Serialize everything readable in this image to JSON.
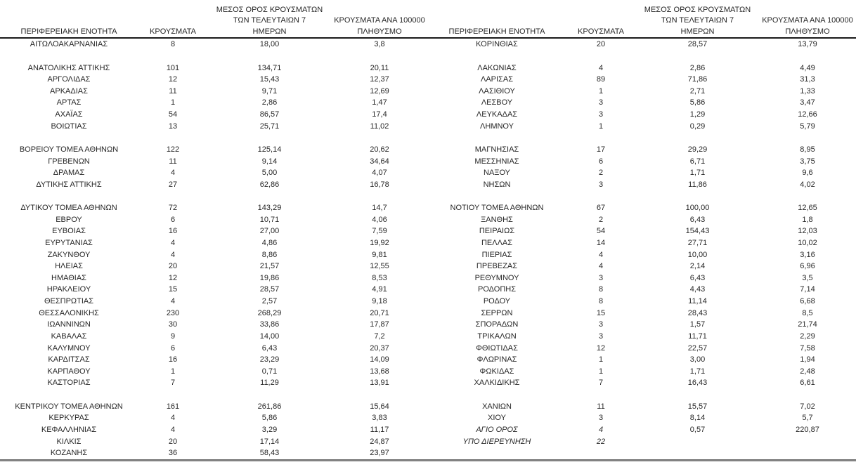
{
  "colors": {
    "text": "#262626",
    "header_rule": "#1a1a1a",
    "bottom_rule": "#828282",
    "background": "#ffffff"
  },
  "columns": {
    "region": "ΠΕΡΙΦΕΡΕΙΑΚΗ ΕΝΟΤΗΤΑ",
    "cases": "ΚΡΟΥΣΜΑΤΑ",
    "avg7_lines": [
      "ΜΕΣΟΣ ΟΡΟΣ ΚΡΟΥΣΜΑΤΩΝ",
      "ΤΩΝ ΤΕΛΕΥΤΑΙΩΝ 7",
      "ΗΜΕΡΩΝ"
    ],
    "per100k_lines": [
      "ΚΡΟΥΣΜΑΤΑ ΑΝΑ 100000",
      "ΠΛΗΘΥΣΜΟ"
    ]
  },
  "tables": [
    {
      "id": "left",
      "rows": [
        {
          "region": "ΑΙΤΩΛΟΑΚΑΡΝΑΝΙΑΣ",
          "cases": "8",
          "avg7": "18,00",
          "per100k": "3,8"
        },
        null,
        {
          "region": "ΑΝΑΤΟΛΙΚΗΣ ΑΤΤΙΚΗΣ",
          "cases": "101",
          "avg7": "134,71",
          "per100k": "20,11"
        },
        {
          "region": "ΑΡΓΟΛΙΔΑΣ",
          "cases": "12",
          "avg7": "15,43",
          "per100k": "12,37"
        },
        {
          "region": "ΑΡΚΑΔΙΑΣ",
          "cases": "11",
          "avg7": "9,71",
          "per100k": "12,69"
        },
        {
          "region": "ΑΡΤΑΣ",
          "cases": "1",
          "avg7": "2,86",
          "per100k": "1,47"
        },
        {
          "region": "ΑΧΑΪΑΣ",
          "cases": "54",
          "avg7": "86,57",
          "per100k": "17,4"
        },
        {
          "region": "ΒΟΙΩΤΙΑΣ",
          "cases": "13",
          "avg7": "25,71",
          "per100k": "11,02"
        },
        null,
        {
          "region": "ΒΟΡΕΙΟΥ ΤΟΜΕΑ ΑΘΗΝΩΝ",
          "cases": "122",
          "avg7": "125,14",
          "per100k": "20,62"
        },
        {
          "region": "ΓΡΕΒΕΝΩΝ",
          "cases": "11",
          "avg7": "9,14",
          "per100k": "34,64"
        },
        {
          "region": "ΔΡΑΜΑΣ",
          "cases": "4",
          "avg7": "5,00",
          "per100k": "4,07"
        },
        {
          "region": "ΔΥΤΙΚΗΣ ΑΤΤΙΚΗΣ",
          "cases": "27",
          "avg7": "62,86",
          "per100k": "16,78"
        },
        null,
        {
          "region": "ΔΥΤΙΚΟΥ ΤΟΜΕΑ ΑΘΗΝΩΝ",
          "cases": "72",
          "avg7": "143,29",
          "per100k": "14,7"
        },
        {
          "region": "ΕΒΡΟΥ",
          "cases": "6",
          "avg7": "10,71",
          "per100k": "4,06"
        },
        {
          "region": "ΕΥΒΟΙΑΣ",
          "cases": "16",
          "avg7": "27,00",
          "per100k": "7,59"
        },
        {
          "region": "ΕΥΡΥΤΑΝΙΑΣ",
          "cases": "4",
          "avg7": "4,86",
          "per100k": "19,92"
        },
        {
          "region": "ΖΑΚΥΝΘΟΥ",
          "cases": "4",
          "avg7": "8,86",
          "per100k": "9,81"
        },
        {
          "region": "ΗΛΕΙΑΣ",
          "cases": "20",
          "avg7": "21,57",
          "per100k": "12,55"
        },
        {
          "region": "ΗΜΑΘΙΑΣ",
          "cases": "12",
          "avg7": "19,86",
          "per100k": "8,53"
        },
        {
          "region": "ΗΡΑΚΛΕΙΟΥ",
          "cases": "15",
          "avg7": "28,57",
          "per100k": "4,91"
        },
        {
          "region": "ΘΕΣΠΡΩΤΙΑΣ",
          "cases": "4",
          "avg7": "2,57",
          "per100k": "9,18"
        },
        {
          "region": "ΘΕΣΣΑΛΟΝΙΚΗΣ",
          "cases": "230",
          "avg7": "268,29",
          "per100k": "20,71"
        },
        {
          "region": "ΙΩΑΝΝΙΝΩΝ",
          "cases": "30",
          "avg7": "33,86",
          "per100k": "17,87"
        },
        {
          "region": "ΚΑΒΑΛΑΣ",
          "cases": "9",
          "avg7": "14,00",
          "per100k": "7,2"
        },
        {
          "region": "ΚΑΛΥΜΝΟΥ",
          "cases": "6",
          "avg7": "6,43",
          "per100k": "20,37"
        },
        {
          "region": "ΚΑΡΔΙΤΣΑΣ",
          "cases": "16",
          "avg7": "23,29",
          "per100k": "14,09"
        },
        {
          "region": "ΚΑΡΠΑΘΟΥ",
          "cases": "1",
          "avg7": "0,71",
          "per100k": "13,68"
        },
        {
          "region": "ΚΑΣΤΟΡΙΑΣ",
          "cases": "7",
          "avg7": "11,29",
          "per100k": "13,91"
        },
        null,
        {
          "region": "ΚΕΝΤΡΙΚΟΥ ΤΟΜΕΑ ΑΘΗΝΩΝ",
          "cases": "161",
          "avg7": "261,86",
          "per100k": "15,64"
        },
        {
          "region": "ΚΕΡΚΥΡΑΣ",
          "cases": "4",
          "avg7": "5,86",
          "per100k": "3,83"
        },
        {
          "region": "ΚΕΦΑΛΛΗΝΙΑΣ",
          "cases": "4",
          "avg7": "3,29",
          "per100k": "11,17"
        },
        {
          "region": "ΚΙΛΚΙΣ",
          "cases": "20",
          "avg7": "17,14",
          "per100k": "24,87"
        },
        {
          "region": "ΚΟΖΑΝΗΣ",
          "cases": "36",
          "avg7": "58,43",
          "per100k": "23,97"
        }
      ]
    },
    {
      "id": "right",
      "rows": [
        {
          "region": "ΚΟΡΙΝΘΙΑΣ",
          "cases": "20",
          "avg7": "28,57",
          "per100k": "13,79"
        },
        null,
        {
          "region": "ΛΑΚΩΝΙΑΣ",
          "cases": "4",
          "avg7": "2,86",
          "per100k": "4,49"
        },
        {
          "region": "ΛΑΡΙΣΑΣ",
          "cases": "89",
          "avg7": "71,86",
          "per100k": "31,3"
        },
        {
          "region": "ΛΑΣΙΘΙΟΥ",
          "cases": "1",
          "avg7": "2,71",
          "per100k": "1,33"
        },
        {
          "region": "ΛΕΣΒΟΥ",
          "cases": "3",
          "avg7": "5,86",
          "per100k": "3,47"
        },
        {
          "region": "ΛΕΥΚΑΔΑΣ",
          "cases": "3",
          "avg7": "1,29",
          "per100k": "12,66"
        },
        {
          "region": "ΛΗΜΝΟΥ",
          "cases": "1",
          "avg7": "0,29",
          "per100k": "5,79"
        },
        null,
        {
          "region": "ΜΑΓΝΗΣΙΑΣ",
          "cases": "17",
          "avg7": "29,29",
          "per100k": "8,95"
        },
        {
          "region": "ΜΕΣΣΗΝΙΑΣ",
          "cases": "6",
          "avg7": "6,71",
          "per100k": "3,75"
        },
        {
          "region": "ΝΑΞΟΥ",
          "cases": "2",
          "avg7": "1,71",
          "per100k": "9,6"
        },
        {
          "region": "ΝΗΣΩΝ",
          "cases": "3",
          "avg7": "11,86",
          "per100k": "4,02"
        },
        null,
        {
          "region": "ΝΟΤΙΟΥ ΤΟΜΕΑ ΑΘΗΝΩΝ",
          "cases": "67",
          "avg7": "100,00",
          "per100k": "12,65"
        },
        {
          "region": "ΞΑΝΘΗΣ",
          "cases": "2",
          "avg7": "6,43",
          "per100k": "1,8"
        },
        {
          "region": "ΠΕΙΡΑΙΩΣ",
          "cases": "54",
          "avg7": "154,43",
          "per100k": "12,03"
        },
        {
          "region": "ΠΕΛΛΑΣ",
          "cases": "14",
          "avg7": "27,71",
          "per100k": "10,02"
        },
        {
          "region": "ΠΙΕΡΙΑΣ",
          "cases": "4",
          "avg7": "10,00",
          "per100k": "3,16"
        },
        {
          "region": "ΠΡΕΒΕΖΑΣ",
          "cases": "4",
          "avg7": "2,14",
          "per100k": "6,96"
        },
        {
          "region": "ΡΕΘΥΜΝΟΥ",
          "cases": "3",
          "avg7": "6,43",
          "per100k": "3,5"
        },
        {
          "region": "ΡΟΔΟΠΗΣ",
          "cases": "8",
          "avg7": "4,43",
          "per100k": "7,14"
        },
        {
          "region": "ΡΟΔΟΥ",
          "cases": "8",
          "avg7": "11,14",
          "per100k": "6,68"
        },
        {
          "region": "ΣΕΡΡΩΝ",
          "cases": "15",
          "avg7": "28,43",
          "per100k": "8,5"
        },
        {
          "region": "ΣΠΟΡΑΔΩΝ",
          "cases": "3",
          "avg7": "1,57",
          "per100k": "21,74"
        },
        {
          "region": "ΤΡΙΚΑΛΩΝ",
          "cases": "3",
          "avg7": "11,71",
          "per100k": "2,29"
        },
        {
          "region": "ΦΘΙΩΤΙΔΑΣ",
          "cases": "12",
          "avg7": "22,57",
          "per100k": "7,58"
        },
        {
          "region": "ΦΛΩΡΙΝΑΣ",
          "cases": "1",
          "avg7": "3,00",
          "per100k": "1,94"
        },
        {
          "region": "ΦΩΚΙΔΑΣ",
          "cases": "1",
          "avg7": "1,71",
          "per100k": "2,48"
        },
        {
          "region": "ΧΑΛΚΙΔΙΚΗΣ",
          "cases": "7",
          "avg7": "16,43",
          "per100k": "6,61"
        },
        null,
        {
          "region": "ΧΑΝΙΩΝ",
          "cases": "11",
          "avg7": "15,57",
          "per100k": "7,02"
        },
        {
          "region": "ΧΙΟΥ",
          "cases": "3",
          "avg7": "8,14",
          "per100k": "5,7"
        },
        {
          "region": "ΑΓΙΟ ΟΡΟΣ",
          "cases": "4",
          "avg7": "0,57",
          "per100k": "220,87",
          "italic": true
        },
        {
          "region": "ΥΠΟ ΔΙΕΡΕΥΝΗΣΗ",
          "cases": "22",
          "avg7": "",
          "per100k": "",
          "italic": true
        },
        null
      ]
    }
  ]
}
